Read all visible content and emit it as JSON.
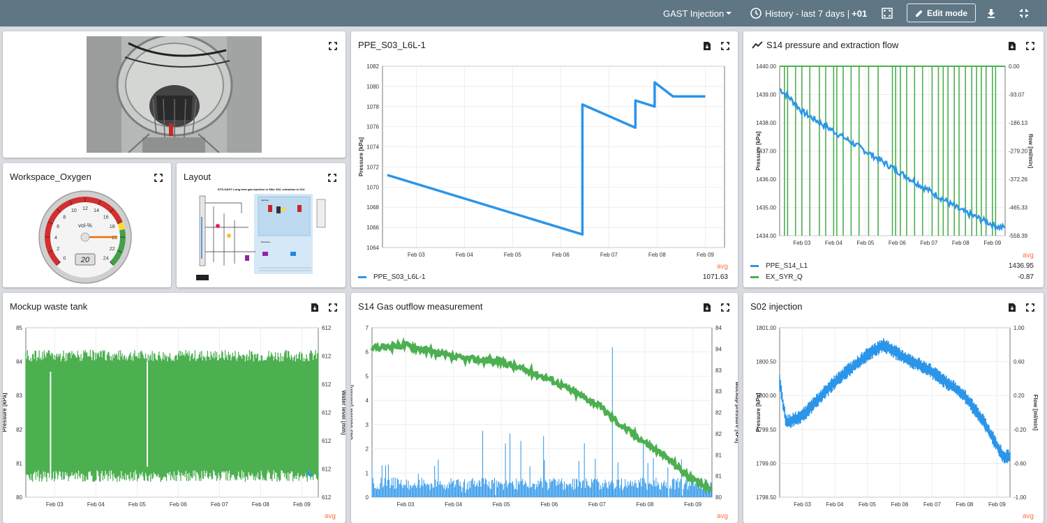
{
  "topbar": {
    "dashboard": "GAST Injection",
    "history_prefix": "History - last 7 days |",
    "history_tz": "+01",
    "edit_label": "Edit mode"
  },
  "colors": {
    "topbar": "#5f7684",
    "blue": "#2b95e9",
    "green": "#4caf50",
    "avg": "#ff7043"
  },
  "panels": {
    "workspace": {
      "title": "Workspace_Oxygen"
    },
    "layout": {
      "title": "Layout"
    },
    "ppe": {
      "title": "PPE_S03_L6L-1",
      "legend_header": "avg",
      "series": "PPE_S03_L6L-1",
      "avg": "1071.63"
    },
    "s14": {
      "title": "S14 pressure and extraction flow",
      "legend_header": "avg",
      "series": [
        {
          "name": "PPE_S14_L1",
          "avg": "1436.95"
        },
        {
          "name": "EX_SYR_Q",
          "avg": "-0.87"
        }
      ]
    },
    "mockup": {
      "title": "Mockup waste tank",
      "legend_header": "avg"
    },
    "gas": {
      "title": "S14 Gas outflow measurement",
      "legend_header": "avg"
    },
    "s02": {
      "title": "S02 injection",
      "legend_header": "avg"
    }
  },
  "gauge": {
    "value": 20,
    "unit": "vol-%",
    "display": "20",
    "ticks": [
      "0",
      "2",
      "4",
      "6",
      "8",
      "10",
      "12",
      "14",
      "16",
      "18",
      "20",
      "22",
      "24"
    ]
  },
  "layout_doc": {
    "heading": "GTS-GAST: Long term gas injection in filter S02, extraction in S14",
    "section_injection": "Injection",
    "section_extraction": "Extraction"
  },
  "chart_data": [
    {
      "id": "ppe",
      "type": "line",
      "x_ticks": [
        "Feb 03",
        "Feb 04",
        "Feb 05",
        "Feb 06",
        "Feb 07",
        "Feb 08",
        "Feb 09"
      ],
      "ylabel": "Pressure [kPa]",
      "ylim": [
        1064,
        1082
      ],
      "y_ticks": [
        "1064",
        "1066",
        "1068",
        "1070",
        "1072",
        "1074",
        "1076",
        "1078",
        "1080",
        "1082"
      ],
      "series": [
        {
          "name": "PPE_S03_L6L-1",
          "color": "#2b95e9",
          "x": [
            2.4,
            6.45,
            6.45,
            7.55,
            7.55,
            7.95,
            7.95,
            8.33,
            8.33,
            9.0
          ],
          "y": [
            1071.2,
            1065.3,
            1078.2,
            1075.9,
            1078.6,
            1078.0,
            1080.4,
            1079.0,
            1079.0,
            1079.0
          ]
        }
      ]
    },
    {
      "id": "s14",
      "type": "line",
      "x_ticks": [
        "Feb 03",
        "Feb 04",
        "Feb 05",
        "Feb 06",
        "Feb 07",
        "Feb 08",
        "Feb 09"
      ],
      "ylabel": "Pressure [kPa]",
      "y2label": "flow [ml/min]",
      "ylim": [
        1434,
        1440
      ],
      "y2lim": [
        -558.39,
        0
      ],
      "y_ticks": [
        "1434.00",
        "1435.00",
        "1436.00",
        "1437.00",
        "1438.00",
        "1439.00",
        "1440.00"
      ],
      "y2_ticks": [
        "-558.39",
        "-465.33",
        "-372.26",
        "-279.20",
        "-186.13",
        "-93.07",
        "0.00"
      ],
      "series": [
        {
          "name": "PPE_S14_L1",
          "color": "#2b95e9",
          "x": [
            2.3,
            2.6,
            3.0,
            4.0,
            5.0,
            6.0,
            7.0,
            8.0,
            9.2
          ],
          "y": [
            1439.2,
            1438.9,
            1438.4,
            1437.7,
            1437.0,
            1436.3,
            1435.6,
            1434.9,
            1434.3
          ]
        },
        {
          "name": "EX_SYR_Q",
          "color": "#4caf50",
          "note": "spikes"
        }
      ]
    },
    {
      "id": "mockup",
      "type": "line",
      "x_ticks": [
        "Feb 03",
        "Feb 04",
        "Feb 05",
        "Feb 06",
        "Feb 07",
        "Feb 08",
        "Feb 09"
      ],
      "ylabel": "Pressure [kPa]",
      "y2label": "Water level [mm]",
      "ylim": [
        80,
        85
      ],
      "y_ticks": [
        "80",
        "81",
        "82",
        "83",
        "84",
        "85"
      ],
      "y2_ticks": [
        "612",
        "612",
        "612",
        "612",
        "612",
        "612",
        "612"
      ],
      "series": [
        {
          "name": "Pressure",
          "color": "#2b95e9",
          "x": [
            2.3,
            3.0,
            4.0,
            5.0,
            6.0,
            7.0,
            8.0,
            8.6,
            9.2
          ],
          "y": [
            83.8,
            83.6,
            83.3,
            83.0,
            82.7,
            82.4,
            82.0,
            81.4,
            80.7
          ]
        },
        {
          "name": "Water level",
          "color": "#4caf50"
        }
      ]
    },
    {
      "id": "gas",
      "type": "line",
      "x_ticks": [
        "Feb 03",
        "Feb 04",
        "Feb 05",
        "Feb 06",
        "Feb 07",
        "Feb 08",
        "Feb 09"
      ],
      "ylabel": "Gas outflow [ml/min]",
      "y2label": "Mockup pressure [kPa]",
      "ylim": [
        0,
        7
      ],
      "y_ticks": [
        "0",
        "1",
        "2",
        "3",
        "4",
        "5",
        "6",
        "7"
      ],
      "y2lim": [
        80,
        84
      ],
      "y2_ticks": [
        "80",
        "81",
        "81",
        "82",
        "82",
        "83",
        "83",
        "84",
        "84"
      ],
      "series": [
        {
          "name": "Mockup pressure",
          "color": "#4caf50",
          "x": [
            2.3,
            3.0,
            4.0,
            5.0,
            6.0,
            7.0,
            7.5,
            8.0,
            8.5,
            9.0,
            9.4
          ],
          "y": [
            83.5,
            83.6,
            83.3,
            83.2,
            82.8,
            82.2,
            81.7,
            81.3,
            80.9,
            80.4,
            80.2
          ]
        },
        {
          "name": "Gas outflow",
          "color": "#2b95e9"
        }
      ]
    },
    {
      "id": "s02",
      "type": "line",
      "x_ticks": [
        "Feb 03",
        "Feb 04",
        "Feb 05",
        "Feb 06",
        "Feb 07",
        "Feb 08",
        "Feb 09"
      ],
      "ylabel": "Pressure [kPa]",
      "y2label": "Flow [ml/min]",
      "ylim": [
        1798.5,
        1801.0
      ],
      "y_ticks": [
        "1798.50",
        "1799.00",
        "1799.50",
        "1800.00",
        "1800.50",
        "1801.00"
      ],
      "y2lim": [
        -1.0,
        1.0
      ],
      "y2_ticks": [
        "-1.00",
        "-0.60",
        "-0.20",
        "0.20",
        "0.60",
        "1.00"
      ],
      "series": [
        {
          "name": "Pressure",
          "color": "#2b95e9",
          "x": [
            2.3,
            2.5,
            3.0,
            4.0,
            5.0,
            5.5,
            6.0,
            7.0,
            8.0,
            8.6,
            9.2
          ],
          "y": [
            1800.2,
            1799.6,
            1799.7,
            1800.2,
            1800.6,
            1800.75,
            1800.6,
            1800.35,
            1800.0,
            1799.6,
            1799.1
          ]
        }
      ]
    }
  ]
}
